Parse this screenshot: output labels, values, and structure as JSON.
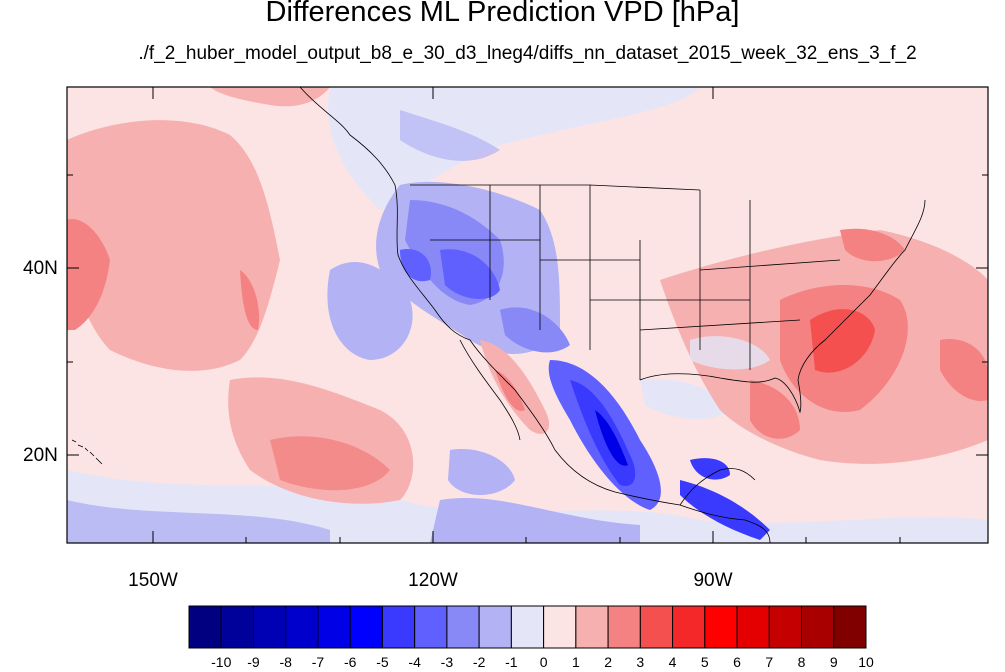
{
  "title": "Differences ML Prediction VPD [hPa]",
  "subtitle": "./f_2_huber_model_output_b8_e_30_d3_lneg4/diffs_nn_dataset_2015_week_32_ens_3_f_2",
  "lat_labels": [
    "40N",
    "20N"
  ],
  "lon_labels": [
    "150W",
    "120W",
    "90W"
  ],
  "colorbar": {
    "labels": [
      "-10",
      "-9",
      "-8",
      "-7",
      "-6",
      "-5",
      "-4",
      "-3",
      "-2",
      "-1",
      "0",
      "1",
      "2",
      "3",
      "4",
      "5",
      "6",
      "7",
      "8",
      "9",
      "10"
    ],
    "colors": [
      "#000080",
      "#00009a",
      "#0000b4",
      "#0000cd",
      "#0000e6",
      "#0000ff",
      "#3a3aff",
      "#6060ff",
      "#8888f7",
      "#b2b2f4",
      "#e4e6f8",
      "#fce4e4",
      "#f6b0b0",
      "#f48282",
      "#f45050",
      "#f42828",
      "#ff0000",
      "#e40000",
      "#c40000",
      "#a80000",
      "#800000"
    ]
  }
}
